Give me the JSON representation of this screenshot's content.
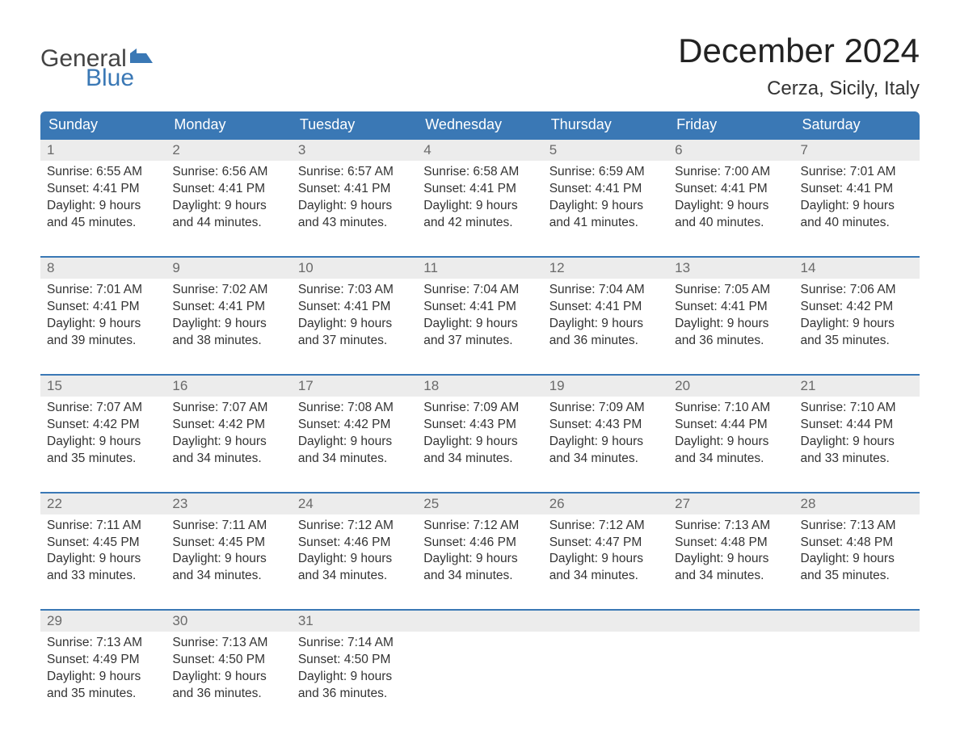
{
  "brand": {
    "word1": "General",
    "word2": "Blue",
    "word1_color": "#444444",
    "word2_color": "#3a78b5",
    "flag_color": "#3a78b5"
  },
  "title": {
    "month": "December 2024",
    "location": "Cerza, Sicily, Italy"
  },
  "colors": {
    "header_bg": "#3a78b5",
    "header_text": "#ffffff",
    "daynum_bg": "#ececec",
    "daynum_text": "#6a6a6a",
    "body_text": "#333333",
    "week_border": "#3a78b5",
    "page_bg": "#ffffff"
  },
  "typography": {
    "title_fontsize": 42,
    "location_fontsize": 24,
    "dow_fontsize": 18,
    "daynum_fontsize": 17,
    "body_fontsize": 15.5,
    "font_family": "Arial"
  },
  "calendar": {
    "type": "month-grid",
    "columns": 7,
    "rows": 5,
    "days_of_week": [
      "Sunday",
      "Monday",
      "Tuesday",
      "Wednesday",
      "Thursday",
      "Friday",
      "Saturday"
    ],
    "weeks": [
      [
        {
          "n": "1",
          "sunrise": "Sunrise: 6:55 AM",
          "sunset": "Sunset: 4:41 PM",
          "d1": "Daylight: 9 hours",
          "d2": "and 45 minutes."
        },
        {
          "n": "2",
          "sunrise": "Sunrise: 6:56 AM",
          "sunset": "Sunset: 4:41 PM",
          "d1": "Daylight: 9 hours",
          "d2": "and 44 minutes."
        },
        {
          "n": "3",
          "sunrise": "Sunrise: 6:57 AM",
          "sunset": "Sunset: 4:41 PM",
          "d1": "Daylight: 9 hours",
          "d2": "and 43 minutes."
        },
        {
          "n": "4",
          "sunrise": "Sunrise: 6:58 AM",
          "sunset": "Sunset: 4:41 PM",
          "d1": "Daylight: 9 hours",
          "d2": "and 42 minutes."
        },
        {
          "n": "5",
          "sunrise": "Sunrise: 6:59 AM",
          "sunset": "Sunset: 4:41 PM",
          "d1": "Daylight: 9 hours",
          "d2": "and 41 minutes."
        },
        {
          "n": "6",
          "sunrise": "Sunrise: 7:00 AM",
          "sunset": "Sunset: 4:41 PM",
          "d1": "Daylight: 9 hours",
          "d2": "and 40 minutes."
        },
        {
          "n": "7",
          "sunrise": "Sunrise: 7:01 AM",
          "sunset": "Sunset: 4:41 PM",
          "d1": "Daylight: 9 hours",
          "d2": "and 40 minutes."
        }
      ],
      [
        {
          "n": "8",
          "sunrise": "Sunrise: 7:01 AM",
          "sunset": "Sunset: 4:41 PM",
          "d1": "Daylight: 9 hours",
          "d2": "and 39 minutes."
        },
        {
          "n": "9",
          "sunrise": "Sunrise: 7:02 AM",
          "sunset": "Sunset: 4:41 PM",
          "d1": "Daylight: 9 hours",
          "d2": "and 38 minutes."
        },
        {
          "n": "10",
          "sunrise": "Sunrise: 7:03 AM",
          "sunset": "Sunset: 4:41 PM",
          "d1": "Daylight: 9 hours",
          "d2": "and 37 minutes."
        },
        {
          "n": "11",
          "sunrise": "Sunrise: 7:04 AM",
          "sunset": "Sunset: 4:41 PM",
          "d1": "Daylight: 9 hours",
          "d2": "and 37 minutes."
        },
        {
          "n": "12",
          "sunrise": "Sunrise: 7:04 AM",
          "sunset": "Sunset: 4:41 PM",
          "d1": "Daylight: 9 hours",
          "d2": "and 36 minutes."
        },
        {
          "n": "13",
          "sunrise": "Sunrise: 7:05 AM",
          "sunset": "Sunset: 4:41 PM",
          "d1": "Daylight: 9 hours",
          "d2": "and 36 minutes."
        },
        {
          "n": "14",
          "sunrise": "Sunrise: 7:06 AM",
          "sunset": "Sunset: 4:42 PM",
          "d1": "Daylight: 9 hours",
          "d2": "and 35 minutes."
        }
      ],
      [
        {
          "n": "15",
          "sunrise": "Sunrise: 7:07 AM",
          "sunset": "Sunset: 4:42 PM",
          "d1": "Daylight: 9 hours",
          "d2": "and 35 minutes."
        },
        {
          "n": "16",
          "sunrise": "Sunrise: 7:07 AM",
          "sunset": "Sunset: 4:42 PM",
          "d1": "Daylight: 9 hours",
          "d2": "and 34 minutes."
        },
        {
          "n": "17",
          "sunrise": "Sunrise: 7:08 AM",
          "sunset": "Sunset: 4:42 PM",
          "d1": "Daylight: 9 hours",
          "d2": "and 34 minutes."
        },
        {
          "n": "18",
          "sunrise": "Sunrise: 7:09 AM",
          "sunset": "Sunset: 4:43 PM",
          "d1": "Daylight: 9 hours",
          "d2": "and 34 minutes."
        },
        {
          "n": "19",
          "sunrise": "Sunrise: 7:09 AM",
          "sunset": "Sunset: 4:43 PM",
          "d1": "Daylight: 9 hours",
          "d2": "and 34 minutes."
        },
        {
          "n": "20",
          "sunrise": "Sunrise: 7:10 AM",
          "sunset": "Sunset: 4:44 PM",
          "d1": "Daylight: 9 hours",
          "d2": "and 34 minutes."
        },
        {
          "n": "21",
          "sunrise": "Sunrise: 7:10 AM",
          "sunset": "Sunset: 4:44 PM",
          "d1": "Daylight: 9 hours",
          "d2": "and 33 minutes."
        }
      ],
      [
        {
          "n": "22",
          "sunrise": "Sunrise: 7:11 AM",
          "sunset": "Sunset: 4:45 PM",
          "d1": "Daylight: 9 hours",
          "d2": "and 33 minutes."
        },
        {
          "n": "23",
          "sunrise": "Sunrise: 7:11 AM",
          "sunset": "Sunset: 4:45 PM",
          "d1": "Daylight: 9 hours",
          "d2": "and 34 minutes."
        },
        {
          "n": "24",
          "sunrise": "Sunrise: 7:12 AM",
          "sunset": "Sunset: 4:46 PM",
          "d1": "Daylight: 9 hours",
          "d2": "and 34 minutes."
        },
        {
          "n": "25",
          "sunrise": "Sunrise: 7:12 AM",
          "sunset": "Sunset: 4:46 PM",
          "d1": "Daylight: 9 hours",
          "d2": "and 34 minutes."
        },
        {
          "n": "26",
          "sunrise": "Sunrise: 7:12 AM",
          "sunset": "Sunset: 4:47 PM",
          "d1": "Daylight: 9 hours",
          "d2": "and 34 minutes."
        },
        {
          "n": "27",
          "sunrise": "Sunrise: 7:13 AM",
          "sunset": "Sunset: 4:48 PM",
          "d1": "Daylight: 9 hours",
          "d2": "and 34 minutes."
        },
        {
          "n": "28",
          "sunrise": "Sunrise: 7:13 AM",
          "sunset": "Sunset: 4:48 PM",
          "d1": "Daylight: 9 hours",
          "d2": "and 35 minutes."
        }
      ],
      [
        {
          "n": "29",
          "sunrise": "Sunrise: 7:13 AM",
          "sunset": "Sunset: 4:49 PM",
          "d1": "Daylight: 9 hours",
          "d2": "and 35 minutes."
        },
        {
          "n": "30",
          "sunrise": "Sunrise: 7:13 AM",
          "sunset": "Sunset: 4:50 PM",
          "d1": "Daylight: 9 hours",
          "d2": "and 36 minutes."
        },
        {
          "n": "31",
          "sunrise": "Sunrise: 7:14 AM",
          "sunset": "Sunset: 4:50 PM",
          "d1": "Daylight: 9 hours",
          "d2": "and 36 minutes."
        },
        {
          "empty": true
        },
        {
          "empty": true
        },
        {
          "empty": true
        },
        {
          "empty": true
        }
      ]
    ]
  }
}
